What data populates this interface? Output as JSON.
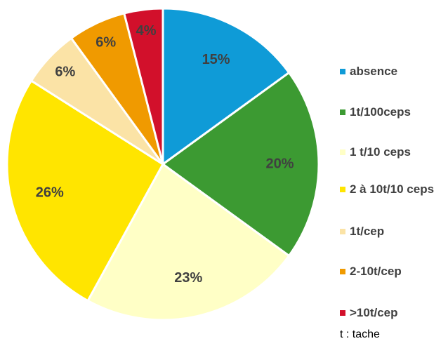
{
  "chart_data": {
    "type": "pie",
    "categories": [
      "absence",
      "1t/100ceps",
      "1 t/10 ceps",
      "2 à 10t/10 ceps",
      "1t/cep",
      "2-10t/cep",
      ">10t/cep"
    ],
    "values": [
      15,
      20,
      23,
      26,
      6,
      6,
      4
    ],
    "value_labels": [
      "15%",
      "20%",
      "23%",
      "26%",
      "6%",
      "6%",
      "4%"
    ],
    "colors": [
      "#0f9bd7",
      "#3c9a32",
      "#ffffc6",
      "#ffe500",
      "#fbe3a6",
      "#f09a00",
      "#d2102b"
    ],
    "legend": "right",
    "annotations": [
      "t : tache"
    ]
  }
}
